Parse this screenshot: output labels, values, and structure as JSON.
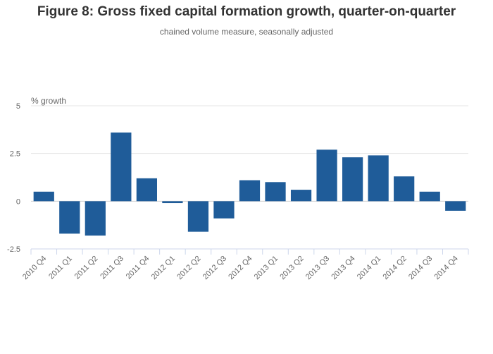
{
  "chart_data": {
    "type": "bar",
    "title": "Figure 8: Gross fixed capital formation growth, quarter-on-quarter",
    "subtitle": "chained volume measure, seasonally adjusted",
    "ylabel": "% growth",
    "xlabel": "",
    "ylim": [
      -2.5,
      5
    ],
    "yticks": [
      -2.5,
      0,
      2.5,
      5
    ],
    "ytick_labels": [
      "-2.5",
      "0",
      "2.5",
      "5"
    ],
    "grid": true,
    "bar_color": "#1f5c99",
    "categories": [
      "2010 Q4",
      "2011 Q1",
      "2011 Q2",
      "2011 Q3",
      "2011 Q4",
      "2012 Q1",
      "2012 Q2",
      "2012 Q3",
      "2012 Q4",
      "2013 Q1",
      "2013 Q2",
      "2013 Q3",
      "2013 Q4",
      "2014 Q1",
      "2014 Q2",
      "2014 Q3",
      "2014 Q4"
    ],
    "values": [
      0.5,
      -1.7,
      -1.8,
      3.6,
      1.2,
      -0.1,
      -1.6,
      -0.9,
      1.1,
      1.0,
      0.6,
      2.7,
      2.3,
      2.4,
      1.3,
      0.5,
      -0.5
    ]
  }
}
